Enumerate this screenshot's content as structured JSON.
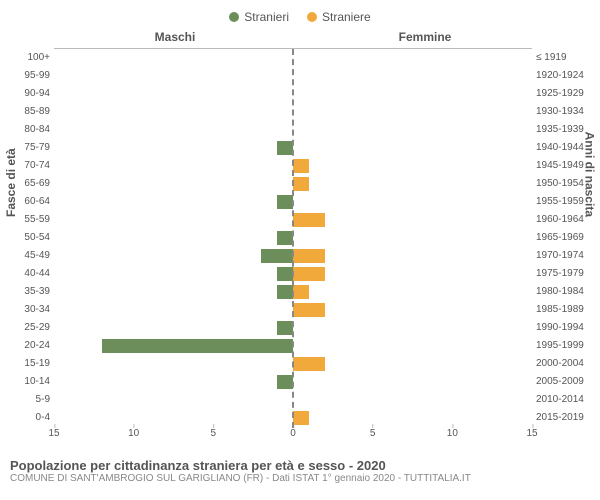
{
  "legend": {
    "male_label": "Stranieri",
    "female_label": "Straniere"
  },
  "headers": {
    "left": "Maschi",
    "right": "Femmine"
  },
  "axis_labels": {
    "left": "Fasce di età",
    "right": "Anni di nascita"
  },
  "colors": {
    "male": "#6b8e5a",
    "female": "#f0a93a",
    "grid": "#bbbbbb",
    "text": "#555555",
    "bg": "#ffffff"
  },
  "xaxis": {
    "max": 15,
    "ticks": [
      15,
      10,
      5,
      0,
      5,
      10,
      15
    ]
  },
  "rows": [
    {
      "age": "100+",
      "birth": "≤ 1919",
      "m": 0,
      "f": 0
    },
    {
      "age": "95-99",
      "birth": "1920-1924",
      "m": 0,
      "f": 0
    },
    {
      "age": "90-94",
      "birth": "1925-1929",
      "m": 0,
      "f": 0
    },
    {
      "age": "85-89",
      "birth": "1930-1934",
      "m": 0,
      "f": 0
    },
    {
      "age": "80-84",
      "birth": "1935-1939",
      "m": 0,
      "f": 0
    },
    {
      "age": "75-79",
      "birth": "1940-1944",
      "m": 1,
      "f": 0
    },
    {
      "age": "70-74",
      "birth": "1945-1949",
      "m": 0,
      "f": 1
    },
    {
      "age": "65-69",
      "birth": "1950-1954",
      "m": 0,
      "f": 1
    },
    {
      "age": "60-64",
      "birth": "1955-1959",
      "m": 1,
      "f": 0
    },
    {
      "age": "55-59",
      "birth": "1960-1964",
      "m": 0,
      "f": 2
    },
    {
      "age": "50-54",
      "birth": "1965-1969",
      "m": 1,
      "f": 0
    },
    {
      "age": "45-49",
      "birth": "1970-1974",
      "m": 2,
      "f": 2
    },
    {
      "age": "40-44",
      "birth": "1975-1979",
      "m": 1,
      "f": 2
    },
    {
      "age": "35-39",
      "birth": "1980-1984",
      "m": 1,
      "f": 1
    },
    {
      "age": "30-34",
      "birth": "1985-1989",
      "m": 0,
      "f": 2
    },
    {
      "age": "25-29",
      "birth": "1990-1994",
      "m": 1,
      "f": 0
    },
    {
      "age": "20-24",
      "birth": "1995-1999",
      "m": 12,
      "f": 0
    },
    {
      "age": "15-19",
      "birth": "2000-2004",
      "m": 0,
      "f": 2
    },
    {
      "age": "10-14",
      "birth": "2005-2009",
      "m": 1,
      "f": 0
    },
    {
      "age": "5-9",
      "birth": "2010-2014",
      "m": 0,
      "f": 0
    },
    {
      "age": "0-4",
      "birth": "2015-2019",
      "m": 0,
      "f": 1
    }
  ],
  "footer": {
    "title": "Popolazione per cittadinanza straniera per età e sesso - 2020",
    "subtitle": "COMUNE DI SANT'AMBROGIO SUL GARIGLIANO (FR) - Dati ISTAT 1° gennaio 2020 - TUTTITALIA.IT"
  }
}
